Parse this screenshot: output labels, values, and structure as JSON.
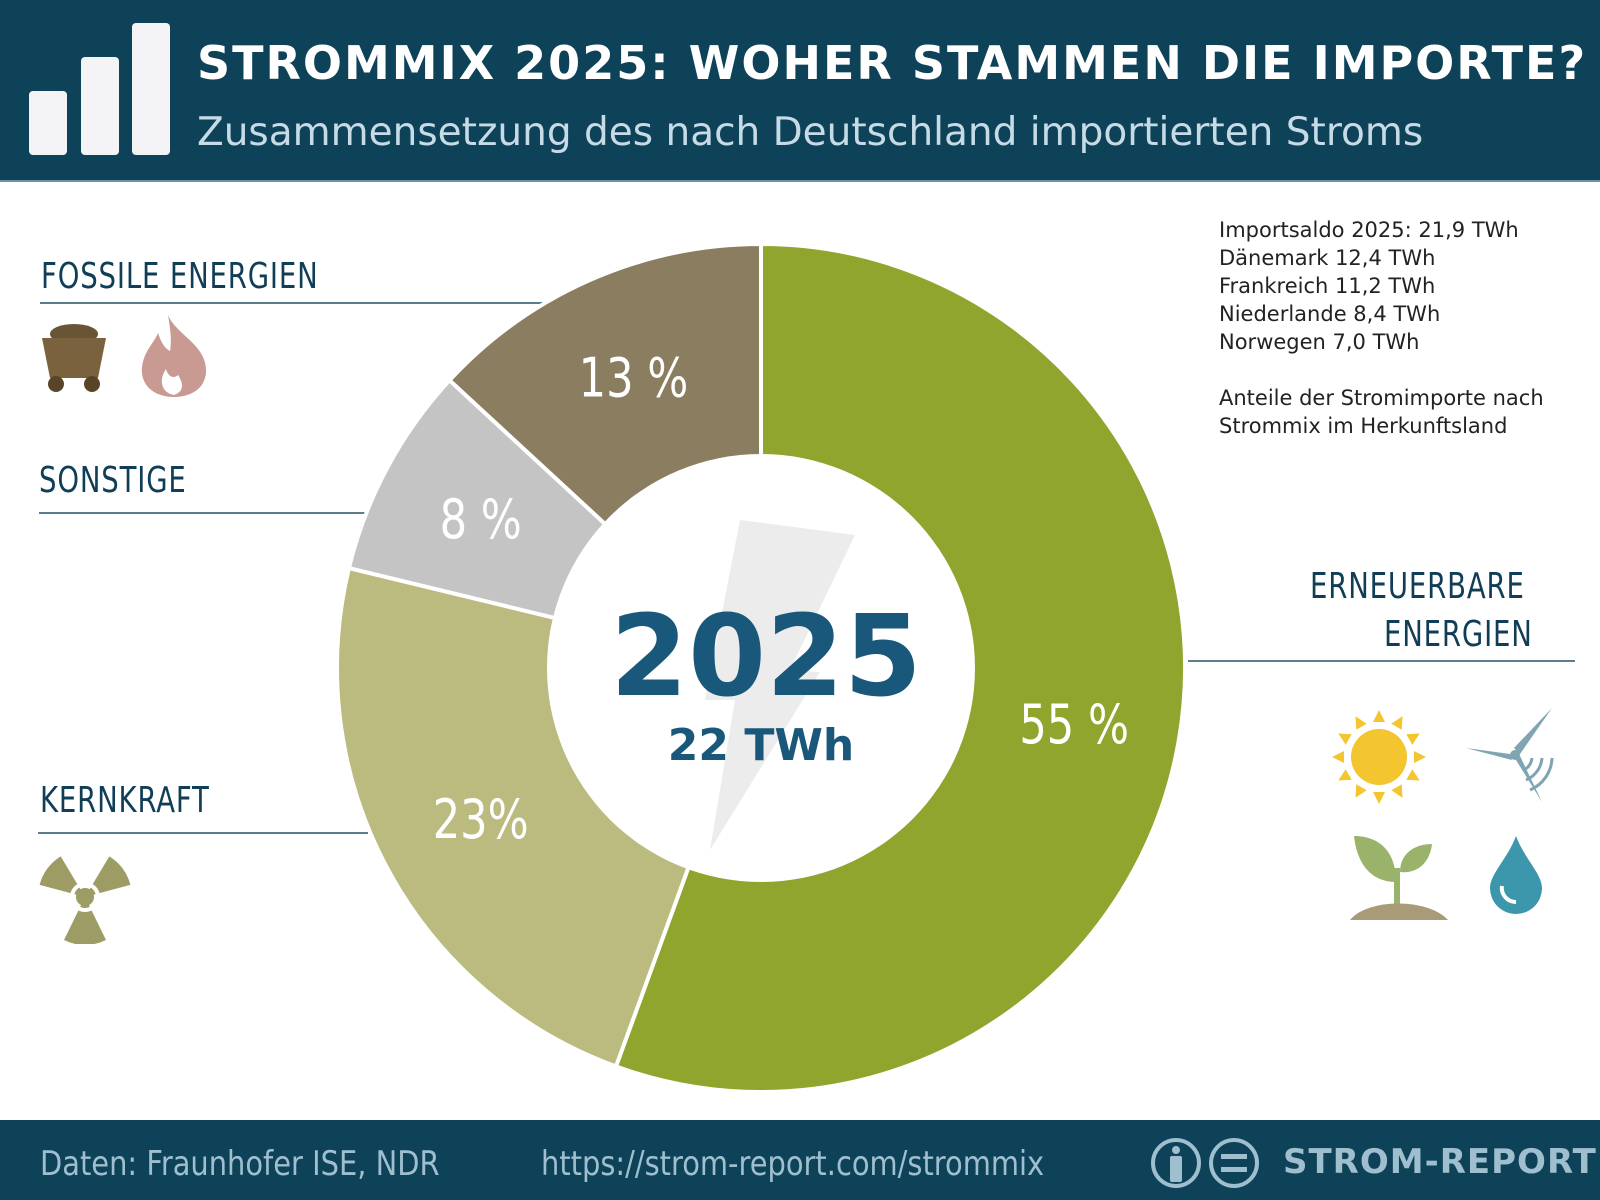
{
  "header": {
    "title": "STROMMIX 2025: WOHER STAMMEN DIE IMPORTE?",
    "subtitle": "Zusammensetzung des nach Deutschland importierten Stroms"
  },
  "chart_data": {
    "type": "pie",
    "donut": true,
    "categories": [
      "ERNEUERBARE ENERGIEN",
      "KERNKRAFT",
      "SONSTIGE",
      "FOSSILE ENERGIEN"
    ],
    "values": [
      55,
      23,
      8,
      13
    ],
    "labels": [
      "55 %",
      "23%",
      "8 %",
      "13 %"
    ],
    "colors": [
      "#8fa52e",
      "#bcbb7f",
      "#c4c4c4",
      "#8b7d60"
    ],
    "center_title": "2025",
    "center_subtitle": "22 TWh",
    "unit": "%"
  },
  "info": {
    "lines": [
      "Importsaldo 2025: 21,9 TWh",
      "Dänemark 12,4 TWh",
      "Frankreich 11,2 TWh",
      "Niederlande 8,4 TWh",
      "Norwegen 7,0 TWh"
    ],
    "note": [
      "Anteile der Stromimporte nach",
      "Strommix im Herkunftsland"
    ]
  },
  "labels": {
    "fossil": "FOSSILE ENERGIEN",
    "sonstige": "SONSTIGE",
    "kernkraft": "KERNKRAFT",
    "erneuerbare": [
      "ERNEUERBARE",
      "ENERGIEN"
    ]
  },
  "icons": [
    "coal-cart-icon",
    "flame-icon",
    "radiation-icon",
    "sun-icon",
    "wind-turbine-icon",
    "plant-icon",
    "water-drop-icon",
    "bolt-icon"
  ],
  "footer": {
    "source": "Daten: Fraunhofer ISE, NDR",
    "url": "https://strom-report.com/strommix",
    "brand": "STROM-REPORT"
  }
}
